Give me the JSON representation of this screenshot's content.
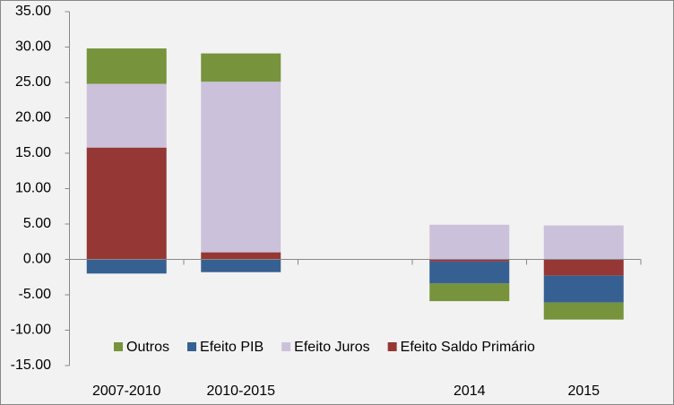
{
  "chart_data": {
    "type": "stacked_bar",
    "categories": [
      "2007-2010",
      "2010-2015",
      null,
      "2014",
      "2015"
    ],
    "series": [
      {
        "name": "Outros",
        "color": "#77933c",
        "values": [
          5.0,
          4.0,
          null,
          -2.5,
          -2.4
        ]
      },
      {
        "name": "Efeito PIB",
        "color": "#376092",
        "values": [
          -2.0,
          -1.8,
          null,
          -3.1,
          -3.8
        ]
      },
      {
        "name": "Efeito Juros",
        "color": "#ccc1da",
        "values": [
          9.0,
          24.1,
          null,
          4.9,
          4.8
        ]
      },
      {
        "name": "Efeito Saldo Primário",
        "color": "#953735",
        "values": [
          15.8,
          1.0,
          null,
          -0.3,
          -2.3
        ]
      }
    ],
    "ylim": [
      -15,
      35
    ],
    "yticks": [
      {
        "value": 35,
        "label": "35.00"
      },
      {
        "value": 30,
        "label": "30.00"
      },
      {
        "value": 25,
        "label": "25.00"
      },
      {
        "value": 20,
        "label": "20.00"
      },
      {
        "value": 15,
        "label": "15.00"
      },
      {
        "value": 10,
        "label": "10.00"
      },
      {
        "value": 5,
        "label": "5.00"
      },
      {
        "value": 0,
        "label": "0.00"
      },
      {
        "value": -5,
        "label": "-5.00"
      },
      {
        "value": -10,
        "label": "-10.00"
      },
      {
        "value": -15,
        "label": "-15.00"
      }
    ],
    "grid": false,
    "legend": "bottom"
  }
}
